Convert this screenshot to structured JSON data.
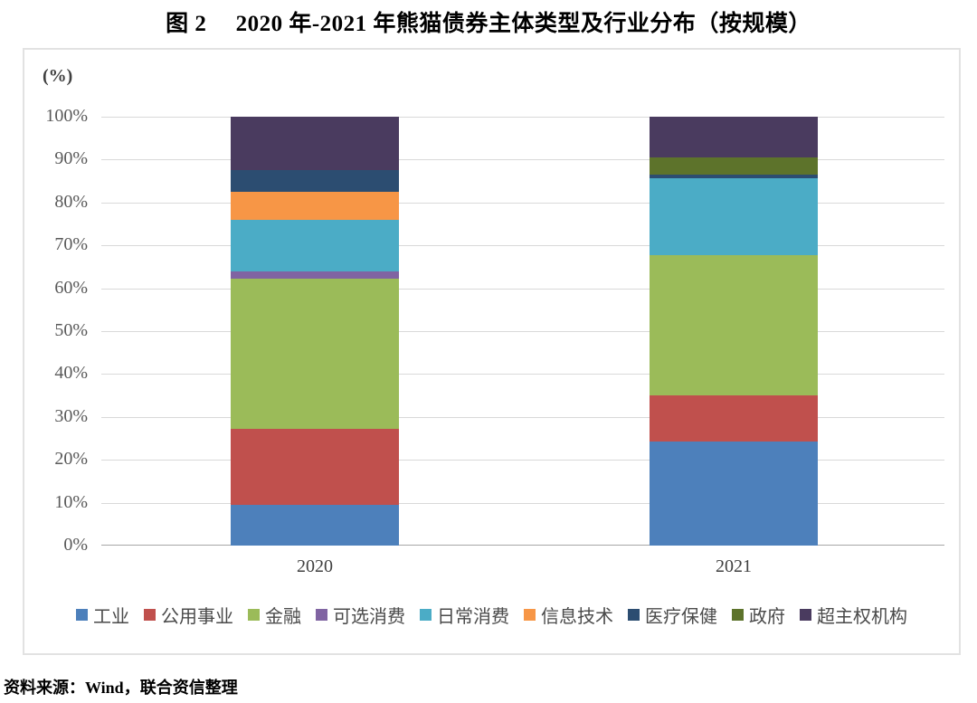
{
  "title": "图 2　 2020 年-2021 年熊猫债券主体类型及行业分布（按规模）",
  "unit_label": "(%)",
  "source_note": "资料来源：Wind，联合资信整理",
  "chart_data": {
    "type": "bar",
    "subtype": "100-percent-stacked-column",
    "title": "图 2　 2020 年-2021 年熊猫债券主体类型及行业分布（按规模）",
    "categories": [
      "2020",
      "2021"
    ],
    "series": [
      {
        "name": "工业",
        "color": "#4D80BB",
        "values": [
          9.5,
          24.2
        ]
      },
      {
        "name": "公用事业",
        "color": "#C0504D",
        "values": [
          17.8,
          10.9
        ]
      },
      {
        "name": "金融",
        "color": "#9BBB59",
        "values": [
          35.0,
          32.7
        ]
      },
      {
        "name": "可选消费",
        "color": "#8064A2",
        "values": [
          1.7,
          0
        ]
      },
      {
        "name": "日常消费",
        "color": "#4BACC6",
        "values": [
          12.0,
          17.9
        ]
      },
      {
        "name": "信息技术",
        "color": "#F79646",
        "values": [
          6.5,
          0
        ]
      },
      {
        "name": "医疗保健",
        "color": "#2C4D71",
        "values": [
          5.1,
          0.9
        ]
      },
      {
        "name": "政府",
        "color": "#5D732B",
        "values": [
          0,
          3.9
        ]
      },
      {
        "name": "超主权机构",
        "color": "#4A3B5F",
        "values": [
          12.4,
          9.5
        ]
      }
    ],
    "y_ticks": [
      "100%",
      "90%",
      "80%",
      "70%",
      "60%",
      "50%",
      "40%",
      "30%",
      "20%",
      "10%",
      "0%"
    ],
    "ylim": [
      0,
      100
    ],
    "ylabel": "(%)",
    "xlabel": "",
    "grid": true,
    "legend_position": "bottom",
    "source": "资料来源：Wind，联合资信整理"
  }
}
